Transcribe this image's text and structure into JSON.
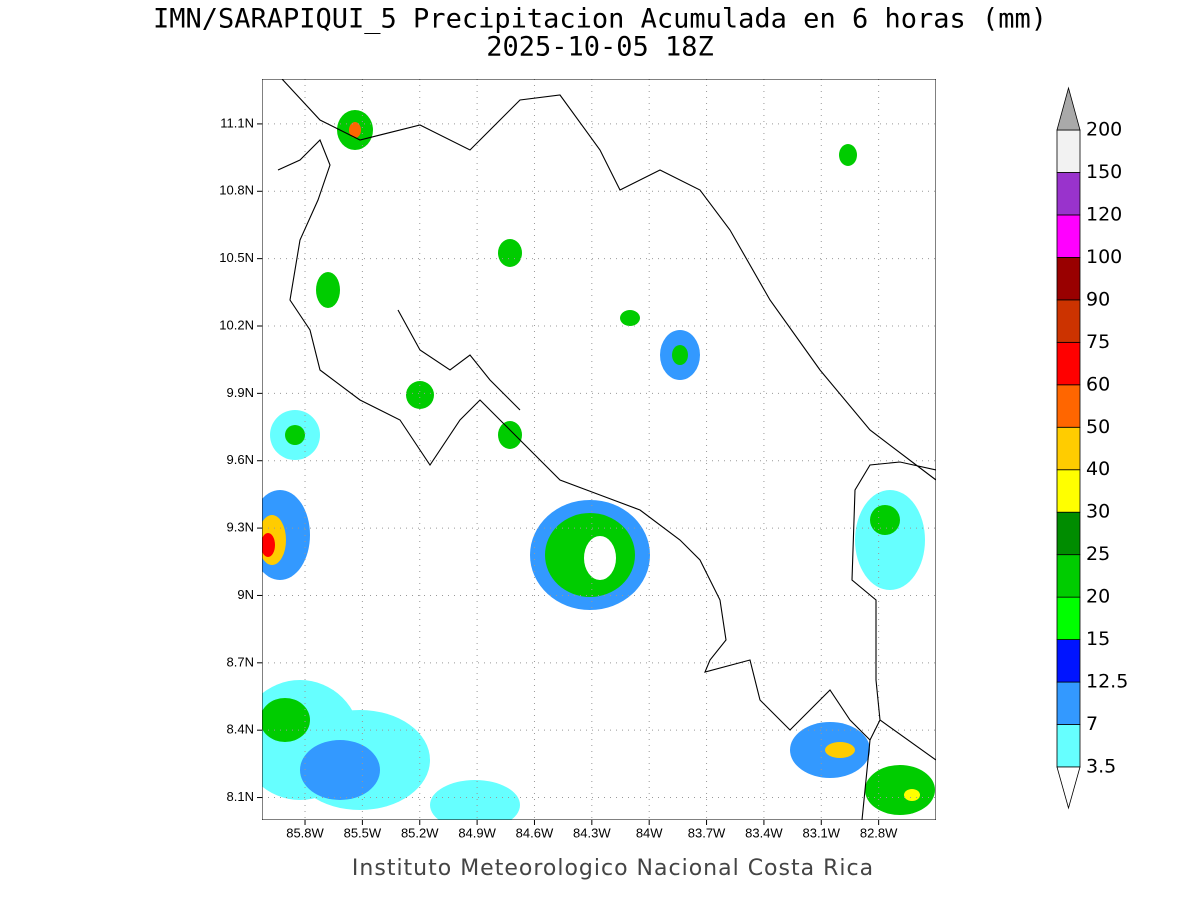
{
  "map": {
    "title": "IMN/SARAPIQUI_5 Precipitacion Acumulada en 6 horas (mm)",
    "subtitle": "2025-10-05 18Z",
    "credit": "Instituto Meteorologico Nacional Costa Rica",
    "xlim": [
      -86.025,
      -82.5
    ],
    "ylim": [
      8.0,
      11.3
    ],
    "lon_ticks": [
      {
        "value": -85.8,
        "label": "85.8W"
      },
      {
        "value": -85.5,
        "label": "85.5W"
      },
      {
        "value": -85.2,
        "label": "85.2W"
      },
      {
        "value": -84.9,
        "label": "84.9W"
      },
      {
        "value": -84.6,
        "label": "84.6W"
      },
      {
        "value": -84.3,
        "label": "84.3W"
      },
      {
        "value": -84.0,
        "label": "84W"
      },
      {
        "value": -83.7,
        "label": "83.7W"
      },
      {
        "value": -83.4,
        "label": "83.4W"
      },
      {
        "value": -83.1,
        "label": "83.1W"
      },
      {
        "value": -82.8,
        "label": "82.8W"
      }
    ],
    "lat_ticks": [
      {
        "value": 8.1,
        "label": "8.1N"
      },
      {
        "value": 8.4,
        "label": "8.4N"
      },
      {
        "value": 8.7,
        "label": "8.7N"
      },
      {
        "value": 9.0,
        "label": "9N"
      },
      {
        "value": 9.3,
        "label": "9.3N"
      },
      {
        "value": 9.6,
        "label": "9.6N"
      },
      {
        "value": 9.9,
        "label": "9.9N"
      },
      {
        "value": 10.2,
        "label": "10.2N"
      },
      {
        "value": 10.5,
        "label": "10.5N"
      },
      {
        "value": 10.8,
        "label": "10.8N"
      },
      {
        "value": 11.1,
        "label": "11.1N"
      }
    ],
    "grid": true,
    "colorbar": {
      "levels": [
        3.5,
        7,
        12.5,
        15,
        20,
        25,
        30,
        40,
        50,
        60,
        75,
        90,
        100,
        120,
        150,
        200
      ],
      "colors": [
        "#66ffff",
        "#3399ff",
        "#0014ff",
        "#00ff00",
        "#00cc00",
        "#008c00",
        "#ffff00",
        "#ffcc00",
        "#ff6600",
        "#ff0000",
        "#cc3300",
        "#990000",
        "#ff00ff",
        "#9933cc",
        "#f2f2f2"
      ],
      "under_color": "#ffffff",
      "over_color": "#a9a9a9"
    }
  }
}
